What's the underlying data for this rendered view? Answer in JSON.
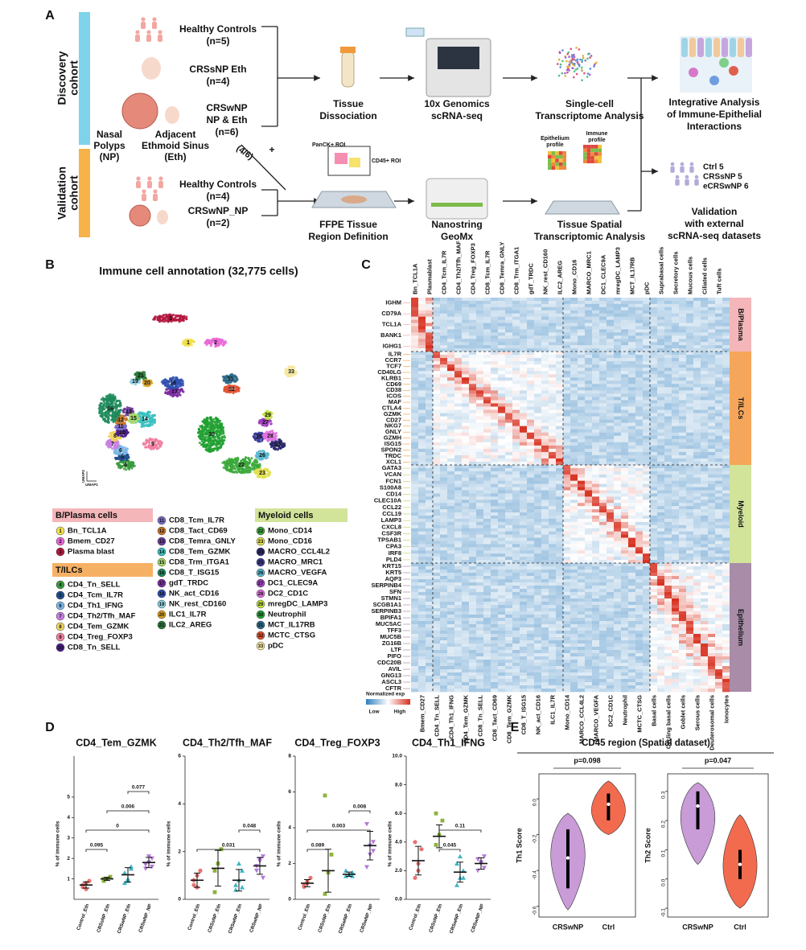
{
  "panel_labels": [
    "A",
    "B",
    "C",
    "D",
    "E"
  ],
  "panel_a": {
    "cohorts": [
      [
        "Discovery",
        "cohort"
      ],
      [
        "Validation",
        "cohort"
      ]
    ],
    "discovery_groups": [
      [
        "Healthy Controls",
        "(n=5)"
      ],
      [
        "CRSsNP Eth",
        "(n=4)"
      ],
      [
        "CRSwNP",
        "NP & Eth",
        "(n=6)"
      ]
    ],
    "tissue_sites": [
      [
        "Nasal",
        "Polyps",
        "(NP)"
      ],
      [
        "Adjacent",
        "Ethmoid Sinus",
        "(Eth)"
      ]
    ],
    "subset": "(4/6)",
    "plus": "+",
    "validation_groups": [
      [
        "Healthy Controls",
        "(n=4)"
      ],
      [
        "CRSwNP_NP",
        "(n=2)"
      ]
    ],
    "discovery_steps": [
      [
        "Tissue",
        "Dissociation"
      ],
      [
        "10x Genomics",
        "scRNA-seq"
      ],
      [
        "Single-cell",
        "Transcriptome Analysis"
      ],
      [
        "Integrative Analysis",
        "of Immune-Epithelial",
        "Interactions"
      ]
    ],
    "validation_steps": [
      [
        "FFPE Tissue",
        "Region Definition"
      ],
      [
        "Nanostring",
        "GeoMx"
      ],
      [
        "Tissue Spatial",
        "Transcriptomic Analysis"
      ],
      [
        "Validation",
        "with external",
        "scRNA-seq datasets"
      ]
    ],
    "roi_labels": [
      "PanCK+ ROI",
      "CD45+ ROI"
    ],
    "profiles": [
      [
        "Epithelium",
        "profile"
      ],
      [
        "Immune",
        "profile"
      ]
    ],
    "external_cohorts": [
      "Ctrl 5",
      "CRSsNP 5",
      "eCRSwNP 6"
    ]
  },
  "panel_b": {
    "title": "Immune cell annotation (32,775 cells)",
    "axes": [
      "UMAP1",
      "UMAP2"
    ],
    "legend": [
      {
        "name": "B/Plasma cells",
        "color": "#f4b6b9",
        "items": [
          {
            "id": 1,
            "name": "Bn_TCL1A",
            "color": "#f2e04a"
          },
          {
            "id": 2,
            "name": "Bmem_CD27",
            "color": "#e766d6"
          },
          {
            "id": 3,
            "name": "Plasma blast",
            "color": "#b3173f"
          }
        ]
      },
      {
        "name": "T/ILCs",
        "color": "#f6b165",
        "items": [
          {
            "id": 4,
            "name": "CD4_Tn_SELL",
            "color": "#3a9a3e"
          },
          {
            "id": 5,
            "name": "CD4_Tcm_IL7R",
            "color": "#1f4e8c"
          },
          {
            "id": 6,
            "name": "CD4_Th1_IFNG",
            "color": "#7db7e6"
          },
          {
            "id": 7,
            "name": "CD4_Th2/Tfh_MAF",
            "color": "#c77fe0"
          },
          {
            "id": 8,
            "name": "CD4_Tem_GZMK",
            "color": "#efd35e"
          },
          {
            "id": 9,
            "name": "CD4_Treg_FOXP3",
            "color": "#f07fa0"
          },
          {
            "id": 10,
            "name": "CD8_Tn_SELL",
            "color": "#4b1f8a"
          },
          {
            "id": 11,
            "name": "CD8_Tcm_IL7R",
            "color": "#7a6ac8"
          },
          {
            "id": 12,
            "name": "CD8_Tact_CD69",
            "color": "#c8782a"
          },
          {
            "id": 13,
            "name": "CD8_Temra_GNLY",
            "color": "#6a3d9a"
          },
          {
            "id": 14,
            "name": "CD8_Tem_GZMK",
            "color": "#3ac0c0"
          },
          {
            "id": 15,
            "name": "CD8_Trm_ITGA1",
            "color": "#a8d96a"
          },
          {
            "id": 16,
            "name": "CD8_T_ISG15",
            "color": "#1e8a5a"
          },
          {
            "id": 17,
            "name": "gdT_TRDC",
            "color": "#7a2ca0"
          },
          {
            "id": 18,
            "name": "NK_act_CD16",
            "color": "#3050b0"
          },
          {
            "id": 19,
            "name": "NK_rest_CD160",
            "color": "#90d0e0"
          },
          {
            "id": 20,
            "name": "ILC1_IL7R",
            "color": "#d8a020"
          },
          {
            "id": 21,
            "name": "ILC2_AREG",
            "color": "#2a7a3a"
          }
        ]
      },
      {
        "name": "Myeloid cells",
        "color": "#d2e39a",
        "items": [
          {
            "id": 22,
            "name": "Mono_CD14",
            "color": "#3aa83a"
          },
          {
            "id": 23,
            "name": "Mono_CD16",
            "color": "#e0e050"
          },
          {
            "id": 24,
            "name": "MACRO_CCL4L2",
            "color": "#2a2a70"
          },
          {
            "id": 25,
            "name": "MACRO_MRC1",
            "color": "#3a3a9a"
          },
          {
            "id": 26,
            "name": "MACRO_VEGFA",
            "color": "#5ab8d0"
          },
          {
            "id": 27,
            "name": "DC1_CLEC9A",
            "color": "#a040c0"
          },
          {
            "id": 28,
            "name": "DC2_CD1C",
            "color": "#e070e0"
          },
          {
            "id": 29,
            "name": "mregDC_LAMP3",
            "color": "#c0e040"
          },
          {
            "id": 30,
            "name": "Neutrophil",
            "color": "#20a030"
          },
          {
            "id": 31,
            "name": "MCT_IL17RB",
            "color": "#2a6a8a"
          },
          {
            "id": 32,
            "name": "MCTC_CTSG",
            "color": "#e05030"
          },
          {
            "id": 33,
            "name": "pDC",
            "color": "#f5e7a0"
          }
        ]
      }
    ]
  },
  "panel_c": {
    "top_labels": [
      "Bn_TCL1A",
      "Plasmablast",
      "CD4_Tcm_IL7R",
      "CD4_Th2/Tfh_MAF",
      "CD4_Treg_FOXP3",
      "CD8_Tcm_IL7R",
      "CD8_Temra_GNLY",
      "CD8_Trm_ITGA1",
      "gdT_TRDC",
      "NK_rest_CD160",
      "ILC2_AREG",
      "Mono_CD16",
      "MARCO_MRC1",
      "DC1_CLEC9A",
      "mregDC_LAMP3",
      "MCT_IL17RB",
      "pDC",
      "Suprabasal cells",
      "Secretory cells",
      "Mucous cells",
      "Ciliated cells",
      "Tuft cells"
    ],
    "bottom_labels": [
      "Bmem_CD27",
      "CD4_Tn_SELL",
      "CD4_Th1_IFNG",
      "CD4_Tem_GZMK",
      "CD8_Tn_SELL",
      "CD8_Tact_CD69",
      "CD8_Tem_GZMK",
      "CD8_T_ISG15",
      "NK_act_CD16",
      "ILC1_IL7R",
      "Mono_CD14",
      "MARCO_CCL4L2",
      "MARCO_VEGFA",
      "DC2_CD1C",
      "Neutrophil",
      "MCTC_CTSG",
      "Basal cells",
      "Cycling basal cells",
      "Goblet cells",
      "Serous cells",
      "Deuterosomal cells",
      "Ionocytes"
    ],
    "groups": [
      {
        "name": "B/Plasma",
        "color": "#f4b6b9",
        "label_color": "#ee9aa4",
        "genes": [
          "IGHM",
          "CD79A",
          "TCL1A",
          "BANK1",
          "IGHG1"
        ]
      },
      {
        "name": "T/ILCs",
        "color": "#f6a65a",
        "label_color": "#ee9a3a",
        "genes": [
          "IL7R",
          "CCR7",
          "TCF7",
          "CD40LG",
          "KLRB1",
          "CD69",
          "CD38",
          "ICOS",
          "MAF",
          "CTLA4",
          "GZMK",
          "CD27",
          "NKG7",
          "GNLY",
          "GZMH",
          "ISG15",
          "SPON2",
          "TRDC",
          "XCL1"
        ]
      },
      {
        "name": "Myeloid",
        "color": "#d2e39a",
        "label_color": "#b3cd55",
        "genes": [
          "GATA3",
          "VCAN",
          "FCN1",
          "S100A8",
          "CD14",
          "CLEC10A",
          "CCL22",
          "CCL19",
          "LAMP3",
          "CXCL8",
          "CSF3R",
          "TPSAB1",
          "CPA3",
          "IRF8",
          "PLD4"
        ]
      },
      {
        "name": "Epithelium",
        "color": "#a88ca8",
        "label_color": "#9a789a",
        "genes": [
          "KRT15",
          "KRT5",
          "AQP3",
          "SERPINB4",
          "SFN",
          "STMN1",
          "SCGB1A1",
          "SERPINB3",
          "BPIFA1",
          "MUC5AC",
          "TFF3",
          "MUC5B",
          "ZG16B",
          "LTF",
          "PIFO",
          "CDC20B",
          "AVIL",
          "GNG13",
          "ASCL3",
          "CFTR"
        ]
      }
    ],
    "colorbar": {
      "title": "Normalized exp",
      "low": "Low",
      "high": "High"
    }
  },
  "panel_d": {
    "ylabel": "% of immune cells",
    "categories": [
      "Control_Eth",
      "CRSsNP_Eth",
      "CRSwNP_Eth",
      "CRSwNP_NP"
    ],
    "colors": [
      "#e8746f",
      "#8db33b",
      "#3bb6c2",
      "#b27ad9"
    ],
    "plots": [
      {
        "title": "CD4_Tem_GZMK",
        "ylim": [
          0,
          7
        ],
        "yticks": [
          1,
          2,
          3,
          4,
          5
        ],
        "points": [
          [
            0.6,
            0.8,
            0.9,
            0.7,
            0.5
          ],
          [
            0.9,
            1.0,
            1.1,
            1.0
          ],
          [
            0.8,
            1.0,
            1.5,
            1.3,
            0.9,
            1.6
          ],
          [
            1.5,
            1.8,
            2.0,
            1.7,
            2.1,
            1.6
          ]
        ],
        "means": [
          0.7,
          1.0,
          1.2,
          1.8
        ],
        "errors": [
          0.15,
          0.08,
          0.35,
          0.25
        ],
        "comparisons": [
          {
            "label": "0.095",
            "groups": [
              0,
              1
            ]
          },
          {
            "label": "0",
            "groups": [
              0,
              3
            ]
          },
          {
            "label": "0.006",
            "groups": [
              1,
              3
            ]
          },
          {
            "label": "0.077",
            "groups": [
              2,
              3
            ]
          }
        ]
      },
      {
        "title": "CD4_Th2/Tfh_MAF",
        "ylim": [
          0,
          6
        ],
        "yticks": [
          0,
          2,
          4,
          6
        ],
        "points": [
          [
            0.6,
            1.0,
            1.2,
            0.8,
            0.5
          ],
          [
            0.3,
            1.5,
            2.1,
            1.2
          ],
          [
            0.4,
            0.8,
            1.2,
            0.6,
            1.5,
            0.5
          ],
          [
            1.2,
            1.6,
            1.8,
            1.4,
            1.7,
            0.9
          ]
        ],
        "means": [
          0.8,
          1.3,
          0.8,
          1.4
        ],
        "errors": [
          0.3,
          0.75,
          0.45,
          0.35
        ],
        "comparisons": [
          {
            "label": "0.031",
            "groups": [
              0,
              3
            ]
          },
          {
            "label": "0.048",
            "groups": [
              2,
              3
            ]
          }
        ]
      },
      {
        "title": "CD4_Treg_FOXP3",
        "ylim": [
          0,
          8
        ],
        "yticks": [
          0,
          2,
          4,
          6,
          8
        ],
        "points": [
          [
            0.7,
            1.0,
            1.2,
            0.8,
            0.9
          ],
          [
            0.3,
            1.5,
            2.5,
            5.8
          ],
          [
            1.3,
            1.4,
            1.5,
            1.6,
            1.4,
            1.3
          ],
          [
            1.8,
            2.5,
            3.2,
            4.2,
            3.0,
            2.7
          ]
        ],
        "means": [
          0.9,
          1.6,
          1.4,
          3.0
        ],
        "errors": [
          0.2,
          1.2,
          0.12,
          0.8
        ],
        "comparisons": [
          {
            "label": "0.089",
            "groups": [
              0,
              1
            ]
          },
          {
            "label": "0.003",
            "groups": [
              0,
              3
            ]
          },
          {
            "label": "0.008",
            "groups": [
              2,
              3
            ]
          }
        ]
      },
      {
        "title": "CD4_Th1_IFNG",
        "ylim": [
          0,
          10
        ],
        "yticks": [
          {
            "value": 0,
            "label": "0.0"
          },
          {
            "value": 2,
            "label": "2.0"
          },
          {
            "value": 4,
            "label": "4.0"
          },
          {
            "value": 6,
            "label": "6.0"
          },
          {
            "value": 8,
            "label": "8.0"
          },
          {
            "value": 10,
            "label": "10.0"
          }
        ],
        "points": [
          [
            1.5,
            2.5,
            3.5,
            4.0,
            2.0
          ],
          [
            3.8,
            4.5,
            5.5,
            6.0
          ],
          [
            1.0,
            1.5,
            2.0,
            2.5,
            3.0,
            1.5
          ],
          [
            2.0,
            2.5,
            3.0,
            2.8,
            2.6,
            2.2
          ]
        ],
        "means": [
          2.7,
          4.4,
          1.9,
          2.5
        ],
        "errors": [
          1.0,
          0.8,
          0.7,
          0.4
        ],
        "comparisons": [
          {
            "label": "0.045",
            "groups": [
              1,
              2
            ]
          },
          {
            "label": "0.11",
            "groups": [
              1,
              3
            ]
          }
        ]
      }
    ]
  },
  "panel_e": {
    "title": "CD45 region (Spatial dataset)",
    "categories": [
      "CRSwNP",
      "Ctrl"
    ],
    "colors": [
      "#c99bd7",
      "#f26b4f"
    ],
    "plots": [
      {
        "ylabel": "Th1 Score",
        "pvalue": "p=0.098",
        "ylim": [
          -0.66,
          0.14
        ],
        "yticks": [
          {
            "value": 0,
            "label": "0.0"
          },
          -0.2,
          -0.4,
          -0.6
        ],
        "violins": [
          {
            "min": -0.62,
            "max": -0.08,
            "q1": -0.5,
            "q3": -0.17,
            "median": -0.33
          },
          {
            "min": -0.2,
            "max": 0.1,
            "q1": -0.12,
            "q3": 0.03,
            "median": -0.03
          }
        ]
      },
      {
        "ylabel": "Th2 Score",
        "pvalue": "p=0.047",
        "ylim": [
          -0.13,
          0.36
        ],
        "yticks": [
          0.3,
          0.2,
          0.1,
          {
            "value": 0,
            "label": "0.0"
          },
          -0.1
        ],
        "violins": [
          {
            "min": 0.05,
            "max": 0.33,
            "q1": 0.17,
            "q3": 0.3,
            "median": 0.25
          },
          {
            "min": -0.1,
            "max": 0.22,
            "q1": 0.0,
            "q3": 0.1,
            "median": 0.05
          }
        ]
      }
    ]
  }
}
